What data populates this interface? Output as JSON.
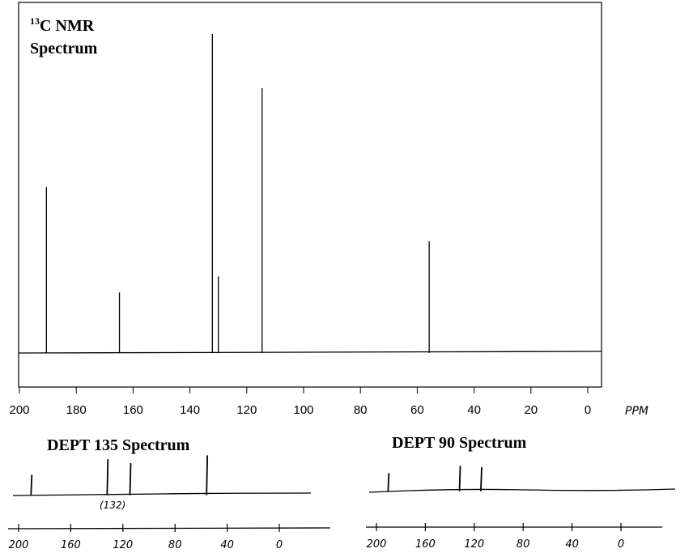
{
  "chart_data": [
    {
      "type": "line",
      "title_sup": "13",
      "title_line1": "C NMR",
      "title_line2": "Spectrum",
      "xlabel": "PPM",
      "xlim": [
        200,
        0
      ],
      "ylim": [
        0,
        1.0
      ],
      "grid": false,
      "x_ticks": [
        200,
        180,
        160,
        140,
        120,
        100,
        80,
        60,
        40,
        20,
        0
      ],
      "x_tick_labels": [
        "200",
        "180",
        "160",
        "140",
        "120",
        "100",
        "80",
        "60",
        "40",
        "20",
        "0"
      ],
      "peaks": [
        {
          "x": 190.5,
          "y": 0.52
        },
        {
          "x": 164.8,
          "y": 0.19
        },
        {
          "x": 132.1,
          "y": 1.0
        },
        {
          "x": 130.0,
          "y": 0.24
        },
        {
          "x": 114.6,
          "y": 0.83
        },
        {
          "x": 55.8,
          "y": 0.35
        }
      ]
    },
    {
      "type": "line",
      "title": "DEPT 135 Spectrum",
      "xlim": [
        200,
        0
      ],
      "x_ticks": [
        200,
        160,
        120,
        80,
        40,
        0
      ],
      "x_tick_labels": [
        "200",
        "160",
        "120",
        "80",
        "40",
        "0"
      ],
      "peaks": [
        {
          "x": 190.5,
          "y": 0.5
        },
        {
          "x": 132.1,
          "y": 0.9
        },
        {
          "x": 114.6,
          "y": 0.8
        },
        {
          "x": 55.8,
          "y": 1.0
        }
      ],
      "annotation": "(132)"
    },
    {
      "type": "line",
      "title": "DEPT 90 Spectrum",
      "xlim": [
        200,
        0
      ],
      "x_ticks": [
        200,
        160,
        120,
        80,
        40,
        0
      ],
      "x_tick_labels": [
        "200",
        "160",
        "120",
        "80",
        "40",
        "0"
      ],
      "peaks": [
        {
          "x": 190.5,
          "y": 0.7
        },
        {
          "x": 132.1,
          "y": 1.0
        },
        {
          "x": 114.6,
          "y": 0.95
        }
      ]
    }
  ]
}
